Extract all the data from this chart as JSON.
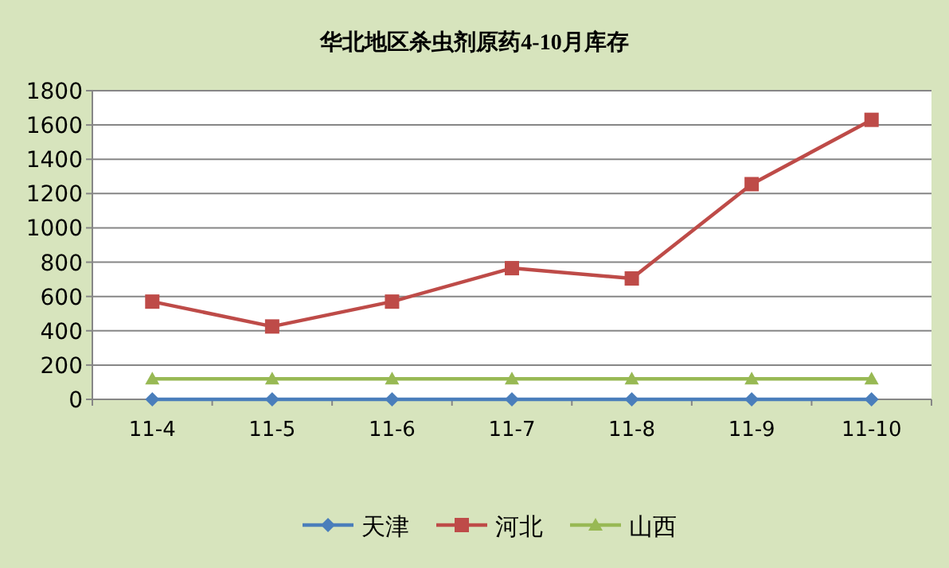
{
  "chart_data": {
    "type": "line",
    "title": "华北地区杀虫剂原药4-10月库存",
    "categories": [
      "11-4",
      "11-5",
      "11-6",
      "11-7",
      "11-8",
      "11-9",
      "11-10"
    ],
    "series": [
      {
        "name": "天津",
        "color": "#4a7ebb",
        "marker": "diamond",
        "values": [
          0,
          0,
          0,
          0,
          0,
          0,
          0
        ]
      },
      {
        "name": "河北",
        "color": "#be4b48",
        "marker": "square",
        "values": [
          570,
          425,
          570,
          765,
          705,
          1255,
          1630
        ]
      },
      {
        "name": "山西",
        "color": "#98b954",
        "marker": "triangle",
        "values": [
          120,
          120,
          120,
          120,
          120,
          120,
          120
        ]
      }
    ],
    "ylim": [
      0,
      1800
    ],
    "yticks": [
      0,
      200,
      400,
      600,
      800,
      1000,
      1200,
      1400,
      1600,
      1800
    ],
    "grid": "y",
    "legend": "bottom"
  }
}
